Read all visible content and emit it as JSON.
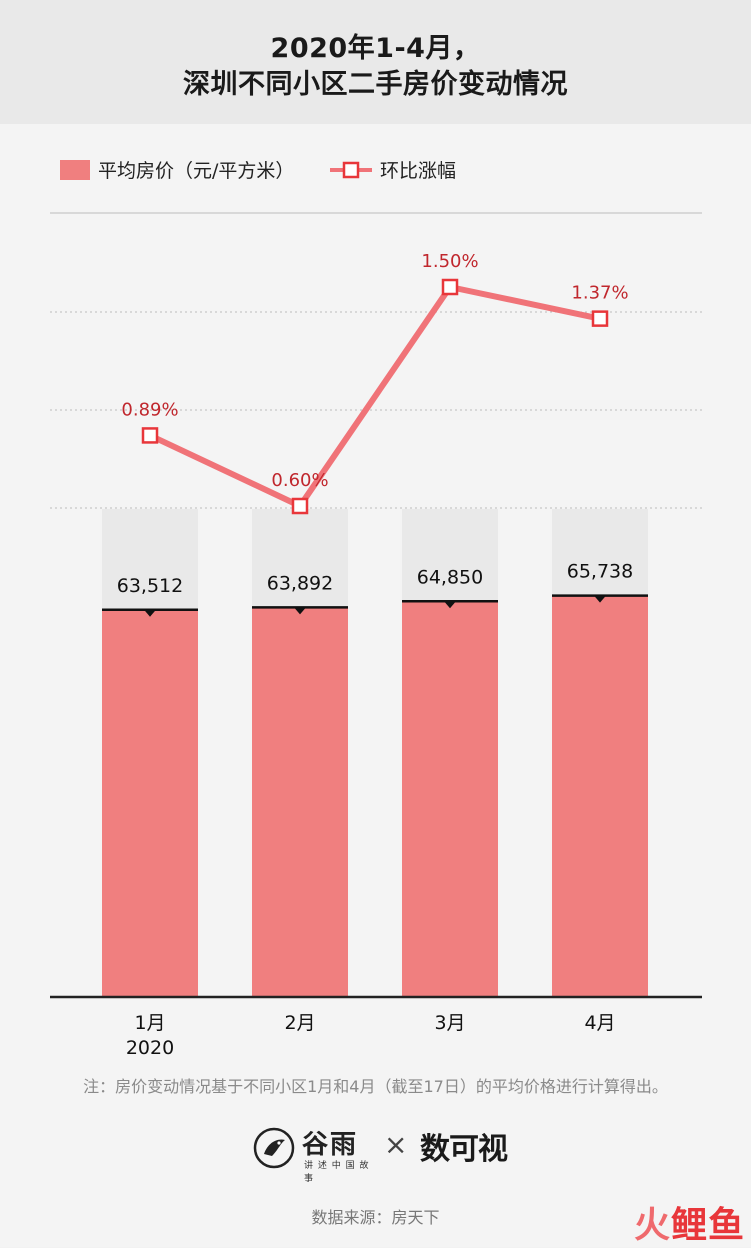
{
  "header": {
    "title_line1": "2020年1-4月，",
    "title_line2": "深圳不同小区二手房价变动情况"
  },
  "legend": {
    "bar_label": "平均房价（元/平方米）",
    "line_label": "环比涨幅"
  },
  "colors": {
    "bar": "#f07f7f",
    "bar_bg": "#e9e9e9",
    "line": "#f07378",
    "pct_text": "#c0272d"
  },
  "chart_data": {
    "type": "bar",
    "title": "2020年1-4月，深圳不同小区二手房价变动情况",
    "categories": [
      "1月",
      "2月",
      "3月",
      "4月"
    ],
    "category_sublabels": [
      "2020",
      "",
      "",
      ""
    ],
    "series": [
      {
        "name": "平均房价（元/平方米）",
        "type": "bar",
        "values": [
          63512,
          63892,
          64850,
          65738
        ],
        "labels": [
          "63,512",
          "63,892",
          "64,850",
          "65,738"
        ]
      },
      {
        "name": "环比涨幅",
        "type": "line",
        "values": [
          0.89,
          0.6,
          1.5,
          1.37
        ],
        "labels": [
          "0.89%",
          "0.60%",
          "1.50%",
          "1.37%"
        ]
      }
    ],
    "ylim": [
      0,
      80000
    ],
    "y2lim": [
      0,
      2.0
    ],
    "legend": "top-left",
    "grid": true
  },
  "footer": {
    "note": "注：房价变动情况基于不同小区1月和4月（截至17日）的平均价格进行计算得出。",
    "logo_left_name": "谷雨",
    "logo_left_sub": "讲 述 中 国 故 事",
    "logo_times": "×",
    "logo_right": "数可视",
    "source": "数据来源：房天下",
    "corner_mark_a": "火",
    "corner_mark_b": "鲤鱼"
  }
}
